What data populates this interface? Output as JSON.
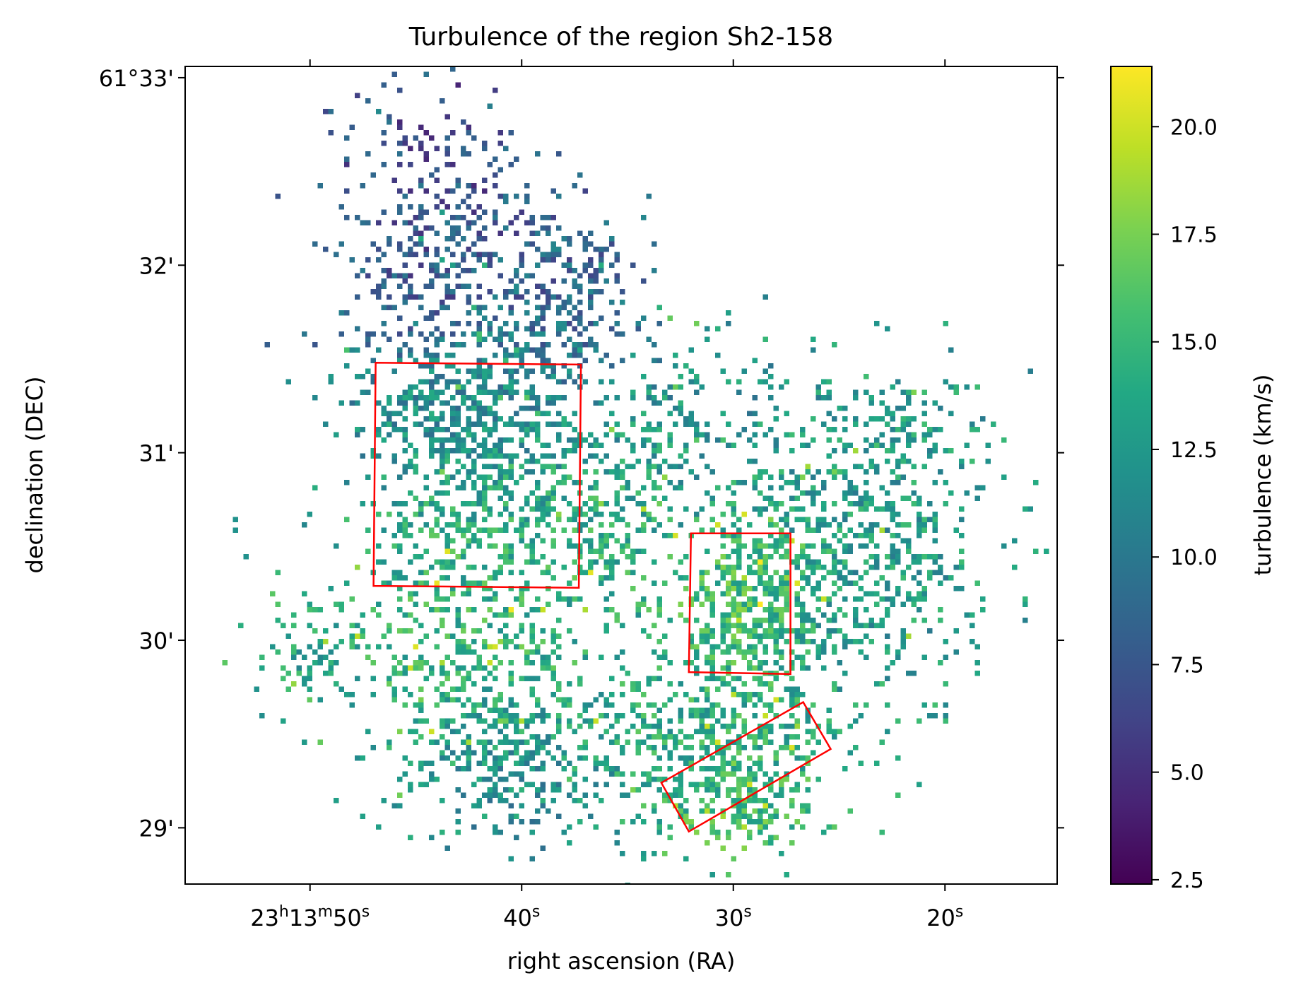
{
  "chart_data": {
    "type": "heatmap",
    "title": "Turbulence of the region Sh2-158",
    "xlabel": "right ascension (RA)",
    "ylabel": "declination (DEC)",
    "colorbar_label": "turbulence (km/s)",
    "colormap": "viridis",
    "value_range": [
      2.4,
      21.4
    ],
    "colorbar_ticks": [
      "2.5",
      "5.0",
      "7.5",
      "10.0",
      "12.5",
      "15.0",
      "17.5",
      "20.0"
    ],
    "colorbar_tick_values": [
      2.5,
      5.0,
      7.5,
      10.0,
      12.5,
      15.0,
      17.5,
      20.0
    ],
    "x_axis": {
      "range_seconds": [
        55.9,
        14.7
      ],
      "tick_values_seconds": [
        50,
        40,
        30,
        20
      ],
      "tick_labels": [
        {
          "main": "23",
          "sup1": "h",
          "mid": "13",
          "sup2": "m",
          "end": "50",
          "sup3": "s"
        },
        {
          "main": "",
          "sup1": "",
          "mid": "",
          "sup2": "",
          "end": "40",
          "sup3": "s"
        },
        {
          "main": "",
          "sup1": "",
          "mid": "",
          "sup2": "",
          "end": "30",
          "sup3": "s"
        },
        {
          "main": "",
          "sup1": "",
          "mid": "",
          "sup2": "",
          "end": "20",
          "sup3": "s"
        }
      ]
    },
    "y_axis": {
      "range_arcmin": [
        28.7,
        33.06
      ],
      "tick_values_arcmin": [
        29,
        30,
        31,
        32,
        33
      ],
      "tick_labels": [
        "29'",
        "30'",
        "31'",
        "32'",
        "61°33'"
      ]
    },
    "grid": false,
    "regions": [
      {
        "shape": "polygon",
        "color": "#ff0000",
        "ra_seconds": [
          46.9,
          37.2,
          37.3,
          47.0
        ],
        "dec_arcmin": [
          31.48,
          31.47,
          30.28,
          30.29
        ]
      },
      {
        "shape": "polygon",
        "color": "#ff0000",
        "ra_seconds": [
          32.0,
          27.3,
          27.3,
          32.1
        ],
        "dec_arcmin": [
          30.57,
          30.57,
          29.82,
          29.83
        ]
      },
      {
        "shape": "polygon",
        "color": "#ff0000",
        "ra_seconds": [
          33.4,
          26.7,
          25.4,
          32.1
        ],
        "dec_arcmin": [
          29.24,
          29.67,
          29.42,
          28.98
        ]
      }
    ],
    "blobs": [
      {
        "ra": 44.0,
        "dec": 32.05,
        "rra": 4.6,
        "rdec": 0.55,
        "value": 7.6,
        "density": 0.4
      },
      {
        "ra": 38.0,
        "dec": 31.8,
        "rra": 3.5,
        "rdec": 0.45,
        "value": 8.6,
        "density": 0.4
      },
      {
        "ra": 44.5,
        "dec": 32.6,
        "rra": 3.8,
        "rdec": 0.38,
        "value": 7.0,
        "density": 0.16
      },
      {
        "ra": 42.2,
        "dec": 31.2,
        "rra": 5.8,
        "rdec": 0.6,
        "value": 11.5,
        "density": 0.52
      },
      {
        "ra": 41.8,
        "dec": 30.55,
        "rra": 5.4,
        "rdec": 0.55,
        "value": 14.5,
        "density": 0.38
      },
      {
        "ra": 32.3,
        "dec": 31.2,
        "rra": 3.6,
        "rdec": 0.45,
        "value": 12.0,
        "density": 0.28
      },
      {
        "ra": 24.5,
        "dec": 30.5,
        "rra": 6.5,
        "rdec": 0.8,
        "value": 12.8,
        "density": 0.45
      },
      {
        "ra": 29.4,
        "dec": 30.2,
        "rra": 3.2,
        "rdec": 0.45,
        "value": 16.2,
        "density": 0.55
      },
      {
        "ra": 42.5,
        "dec": 29.9,
        "rra": 6.5,
        "rdec": 0.5,
        "value": 14.5,
        "density": 0.32
      },
      {
        "ra": 31.0,
        "dec": 29.5,
        "rra": 6.5,
        "rdec": 0.5,
        "value": 14.0,
        "density": 0.5
      },
      {
        "ra": 40.5,
        "dec": 29.35,
        "rra": 5.0,
        "rdec": 0.4,
        "value": 11.8,
        "density": 0.45
      },
      {
        "ra": 29.5,
        "dec": 29.1,
        "rra": 3.6,
        "rdec": 0.25,
        "value": 15.5,
        "density": 0.34
      },
      {
        "ra": 50.0,
        "dec": 29.95,
        "rra": 2.3,
        "rdec": 0.25,
        "value": 13.5,
        "density": 0.34
      },
      {
        "ra": 35.5,
        "dec": 30.6,
        "rra": 3.0,
        "rdec": 0.5,
        "value": 14.0,
        "density": 0.35
      },
      {
        "ra": 22.0,
        "dec": 31.15,
        "rra": 2.5,
        "rdec": 0.25,
        "value": 13.0,
        "density": 0.3
      }
    ],
    "isolated_cells": [
      {
        "ra": 53.4,
        "dec": 30.63,
        "value": 12.0
      },
      {
        "ra": 53.4,
        "dec": 30.6,
        "value": 12.0
      },
      {
        "ra": 19.4,
        "dec": 29.95,
        "value": 11.0
      },
      {
        "ra": 20.4,
        "dec": 30.35,
        "value": 10.5
      },
      {
        "ra": 35.6,
        "dec": 28.93,
        "value": 11.0
      },
      {
        "ra": 35.6,
        "dec": 28.97,
        "value": 11.0
      }
    ]
  }
}
